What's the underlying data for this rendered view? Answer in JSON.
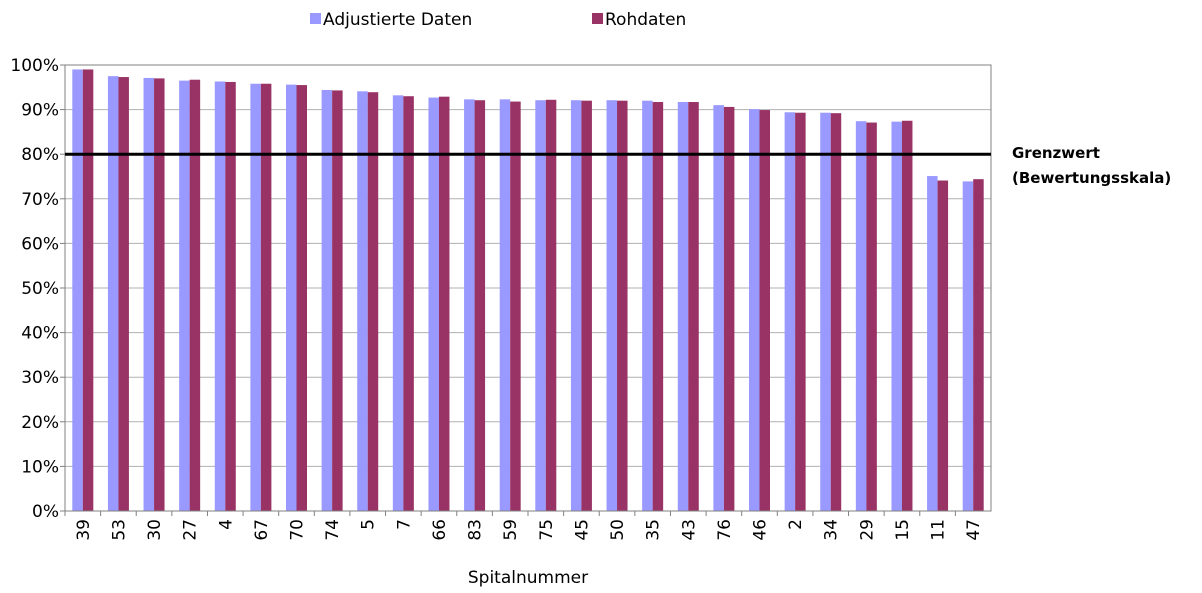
{
  "chart_data": {
    "type": "bar",
    "x_label": "Spitalnummer",
    "categories": [
      "39",
      "53",
      "30",
      "27",
      "4",
      "67",
      "70",
      "74",
      "5",
      "7",
      "66",
      "83",
      "59",
      "75",
      "45",
      "50",
      "35",
      "43",
      "76",
      "46",
      "2",
      "34",
      "29",
      "15",
      "11",
      "47"
    ],
    "series": [
      {
        "name": "Adjustierte Daten",
        "color": "#9999ff",
        "values": [
          99.0,
          97.5,
          97.1,
          96.5,
          96.3,
          95.8,
          95.6,
          94.4,
          94.1,
          93.2,
          92.7,
          92.3,
          92.3,
          92.1,
          92.1,
          92.1,
          92.0,
          91.7,
          91.0,
          90.1,
          89.4,
          89.3,
          87.4,
          87.3,
          75.1,
          73.9
        ]
      },
      {
        "name": "Rohdaten",
        "color": "#993366",
        "values": [
          99.0,
          97.3,
          97.0,
          96.7,
          96.2,
          95.8,
          95.5,
          94.3,
          93.9,
          93.0,
          92.9,
          92.1,
          91.8,
          92.2,
          92.0,
          92.0,
          91.7,
          91.7,
          90.6,
          89.9,
          89.3,
          89.2,
          87.1,
          87.5,
          74.1,
          74.4
        ]
      }
    ],
    "ylim": [
      0,
      100
    ],
    "yticks": [
      {
        "value": 0,
        "label": "0%"
      },
      {
        "value": 10,
        "label": "10%"
      },
      {
        "value": 20,
        "label": "20%"
      },
      {
        "value": 30,
        "label": "30%"
      },
      {
        "value": 40,
        "label": "40%"
      },
      {
        "value": 50,
        "label": "50%"
      },
      {
        "value": 60,
        "label": "60%"
      },
      {
        "value": 70,
        "label": "70%"
      },
      {
        "value": 80,
        "label": "80%"
      },
      {
        "value": 90,
        "label": "90%"
      },
      {
        "value": 100,
        "label": "100%"
      }
    ],
    "grid": true,
    "threshold": {
      "value": 80,
      "label": [
        "Grenzwert",
        "(Bewertungsskala)"
      ]
    }
  }
}
